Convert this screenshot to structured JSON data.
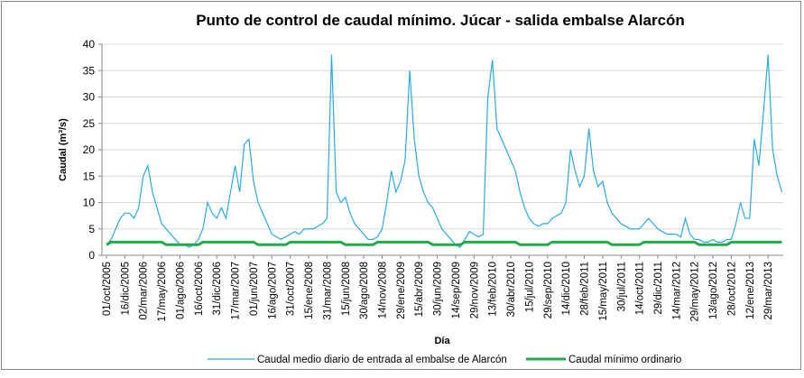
{
  "chart_data": {
    "type": "line",
    "title": "Punto de control de caudal mínimo. Júcar - salida embalse Alarcón",
    "x_label": "Día",
    "y_label": "Caudal (m³/s)",
    "categories": [
      "01/oct/2005",
      null,
      null,
      null,
      "16/dic/2005",
      null,
      null,
      null,
      "02/mar/2006",
      null,
      null,
      null,
      "17/may/2006",
      null,
      null,
      null,
      "01/ago/2006",
      null,
      null,
      null,
      "16/oct/2006",
      null,
      null,
      null,
      "31/dic/2006",
      null,
      null,
      null,
      "17/mar/2007",
      null,
      null,
      null,
      "01/jun/2007",
      null,
      null,
      null,
      "16/ago/2007",
      null,
      null,
      null,
      "31/oct/2007",
      null,
      null,
      null,
      "15/ene/2008",
      null,
      null,
      null,
      "31/mar/2008",
      null,
      null,
      null,
      "15/jun/2008",
      null,
      null,
      null,
      "30/ago/2008",
      null,
      null,
      null,
      "14/nov/2008",
      null,
      null,
      null,
      "29/ene/2009",
      null,
      null,
      null,
      "15/abr/2009",
      null,
      null,
      null,
      "30/jun/2009",
      null,
      null,
      null,
      "14/sep/2009",
      null,
      null,
      null,
      "29/nov/2009",
      null,
      null,
      null,
      "13/feb/2010",
      null,
      null,
      null,
      "30/abr/2010",
      null,
      null,
      null,
      "15/jul/2010",
      null,
      null,
      null,
      "29/sep/2010",
      null,
      null,
      null,
      "14/dic/2010",
      null,
      null,
      null,
      "28/feb/2011",
      null,
      null,
      null,
      "15/may/2011",
      null,
      null,
      null,
      "30/jul/2011",
      null,
      null,
      null,
      "14/oct/2011",
      null,
      null,
      null,
      "29/dic/2011",
      null,
      null,
      null,
      "14/mar/2012",
      null,
      null,
      null,
      "29/may/2012",
      null,
      null,
      null,
      "13/ago/2012",
      null,
      null,
      null,
      "28/oct/2012",
      null,
      null,
      null,
      "12/ene/2013",
      null,
      null,
      null,
      "29/mar/2013",
      null,
      null,
      null
    ],
    "series": [
      {
        "name": "Caudal medio diario de entrada al embalse de Alarcón",
        "color": "#29abe2",
        "width": 1.2,
        "values": [
          2,
          3,
          5,
          7,
          8,
          8,
          7,
          9,
          15,
          17,
          12,
          9,
          6,
          5,
          4,
          3,
          2,
          2,
          1.5,
          2,
          3,
          5,
          10,
          8,
          7,
          9,
          7,
          12,
          17,
          12,
          21,
          22,
          14,
          10,
          8,
          6,
          4,
          3.5,
          3,
          3.5,
          4,
          4.5,
          4,
          5,
          5,
          5,
          5.5,
          6,
          7,
          38,
          12,
          10,
          11,
          8,
          6,
          5,
          4,
          3,
          3,
          3.5,
          5,
          10,
          16,
          12,
          14,
          18,
          35,
          22,
          15,
          12,
          10,
          9,
          7,
          5,
          4,
          3,
          2,
          1.5,
          3,
          4.5,
          4,
          3.5,
          4,
          30,
          37,
          24,
          22,
          20,
          18,
          16,
          12,
          9,
          7,
          6,
          5.5,
          6,
          6,
          7,
          7.5,
          8,
          10,
          20,
          16,
          13,
          15,
          24,
          16,
          13,
          14,
          10,
          8,
          7,
          6,
          5.5,
          5,
          5,
          5,
          6,
          7,
          6,
          5,
          4.5,
          4,
          4,
          4,
          3.5,
          7,
          4,
          3,
          3,
          2.5,
          2.5,
          3,
          2.5,
          2.5,
          3,
          3,
          6,
          10,
          7,
          7,
          22,
          17,
          27,
          38,
          20,
          15,
          12
        ]
      },
      {
        "name": "Caudal mínimo ordinario",
        "color": "#22a94b",
        "width": 3,
        "values": [
          2,
          2.5,
          2.5,
          2.5,
          2.5,
          2.5,
          2.5,
          2.5,
          2.5,
          2.5,
          2.5,
          2.5,
          2.5,
          2,
          2,
          2,
          2,
          2,
          2,
          2,
          2,
          2.5,
          2.5,
          2.5,
          2.5,
          2.5,
          2.5,
          2.5,
          2.5,
          2.5,
          2.5,
          2.5,
          2.5,
          2,
          2,
          2,
          2,
          2,
          2,
          2,
          2.5,
          2.5,
          2.5,
          2.5,
          2.5,
          2.5,
          2.5,
          2.5,
          2.5,
          2.5,
          2.5,
          2.5,
          2,
          2,
          2,
          2,
          2,
          2,
          2,
          2.5,
          2.5,
          2.5,
          2.5,
          2.5,
          2.5,
          2.5,
          2.5,
          2.5,
          2.5,
          2.5,
          2.5,
          2,
          2,
          2,
          2,
          2,
          2,
          2,
          2.5,
          2.5,
          2.5,
          2.5,
          2.5,
          2.5,
          2.5,
          2.5,
          2.5,
          2.5,
          2.5,
          2.5,
          2,
          2,
          2,
          2,
          2,
          2,
          2,
          2.5,
          2.5,
          2.5,
          2.5,
          2.5,
          2.5,
          2.5,
          2.5,
          2.5,
          2.5,
          2.5,
          2.5,
          2.5,
          2,
          2,
          2,
          2,
          2,
          2,
          2,
          2.5,
          2.5,
          2.5,
          2.5,
          2.5,
          2.5,
          2.5,
          2.5,
          2.5,
          2.5,
          2.5,
          2.5,
          2,
          2,
          2,
          2,
          2,
          2,
          2,
          2.5,
          2.5,
          2.5,
          2.5,
          2.5,
          2.5,
          2.5,
          2.5,
          2.5,
          2.5,
          2.5,
          2.5
        ]
      }
    ],
    "ylim": [
      0,
      40
    ],
    "yticks": [
      0,
      5,
      10,
      15,
      20,
      25,
      30,
      35,
      40
    ],
    "grid": true
  }
}
